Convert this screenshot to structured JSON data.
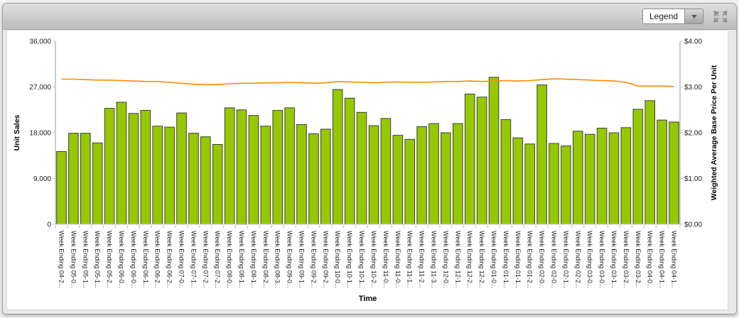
{
  "window": {
    "toolbar": {
      "legend_dropdown": {
        "label": "Legend",
        "icon": "dropdown-arrow-icon"
      },
      "expand_control": {
        "icon": "expand-arrows-icon"
      }
    }
  },
  "chart_data": {
    "type": "bar",
    "subtype": "combo bar + line, dual y-axis",
    "title": "",
    "grid": false,
    "legend_position": "collapsed dropdown (top-right)",
    "x_axis": {
      "label": "Time",
      "categories": [
        "Week Ending 04-2...",
        "Week Ending 05-0...",
        "Week Ending 05-1...",
        "Week Ending 05-1...",
        "Week Ending 05-2...",
        "Week Ending 06-0...",
        "Week Ending 06-0...",
        "Week Ending 06-1...",
        "Week Ending 06-2...",
        "Week Ending 06-2...",
        "Week Ending 07-0...",
        "Week Ending 07-1...",
        "Week Ending 07-2...",
        "Week Ending 07-2...",
        "Week Ending 08-0...",
        "Week Ending 08-1...",
        "Week Ending 08-1...",
        "Week Ending 08-2...",
        "Week Ending 08-3...",
        "Week Ending 09-0...",
        "Week Ending 09-1...",
        "Week Ending 09-2...",
        "Week Ending 09-2...",
        "Week Ending 10-0...",
        "Week Ending 10-1...",
        "Week Ending 10-1...",
        "Week Ending 10-2...",
        "Week Ending 11-0...",
        "Week Ending 11-0...",
        "Week Ending 11-1...",
        "Week Ending 11-2...",
        "Week Ending 11-3...",
        "Week Ending 12-0...",
        "Week Ending 12-1...",
        "Week Ending 12-2...",
        "Week Ending 12-2...",
        "Week Ending 01-0...",
        "Week Ending 01-1...",
        "Week Ending 01-1...",
        "Week Ending 01-2...",
        "Week Ending 02-0...",
        "Week Ending 02-0...",
        "Week Ending 02-1...",
        "Week Ending 02-2...",
        "Week Ending 03-0...",
        "Week Ending 03-0...",
        "Week Ending 03-1...",
        "Week Ending 03-2...",
        "Week Ending 03-2...",
        "Week Ending 04-0...",
        "Week Ending 04-1...",
        "Week Ending 04-1..."
      ]
    },
    "y_axis_left": {
      "label": "Unit Sales",
      "range": [
        0,
        36000
      ],
      "tick_labels": [
        "0",
        "9,000",
        "18,000",
        "27,000",
        "36,000"
      ],
      "tick_values": [
        0,
        9000,
        18000,
        27000,
        36000
      ]
    },
    "y_axis_right": {
      "label": "Weighted Average Base Price Per Unit",
      "range": [
        0,
        4
      ],
      "tick_labels": [
        "$0.00",
        "$1.00",
        "$2.00",
        "$3.00",
        "$4.00"
      ],
      "tick_values": [
        0,
        1,
        2,
        3,
        4
      ]
    },
    "series": [
      {
        "name": "Unit Sales",
        "type": "bar",
        "axis": "left",
        "color": "#95C800",
        "stroke": "#3f3f3f",
        "values": [
          14300,
          17900,
          17900,
          16000,
          22800,
          24000,
          21800,
          22400,
          19300,
          19100,
          21900,
          17900,
          17200,
          15700,
          22900,
          22500,
          21400,
          19300,
          22400,
          22900,
          19600,
          17800,
          18700,
          26500,
          24800,
          22000,
          19400,
          20800,
          17500,
          16700,
          19200,
          19800,
          18000,
          19800,
          25600,
          25000,
          28900,
          20600,
          17000,
          15800,
          27400,
          15900,
          15400,
          18300,
          17700,
          18900,
          18000,
          19000,
          22600,
          24300,
          20500,
          20100
        ]
      },
      {
        "name": "Weighted Average Base Price Per Unit",
        "type": "line",
        "axis": "right",
        "color": "#FF8A00",
        "values": [
          3.17,
          3.17,
          3.16,
          3.15,
          3.15,
          3.14,
          3.13,
          3.12,
          3.12,
          3.1,
          3.08,
          3.06,
          3.05,
          3.05,
          3.07,
          3.08,
          3.08,
          3.09,
          3.09,
          3.1,
          3.09,
          3.08,
          3.09,
          3.12,
          3.11,
          3.1,
          3.09,
          3.1,
          3.11,
          3.1,
          3.1,
          3.11,
          3.12,
          3.12,
          3.13,
          3.12,
          3.13,
          3.14,
          3.13,
          3.14,
          3.16,
          3.18,
          3.17,
          3.16,
          3.15,
          3.14,
          3.13,
          3.1,
          3.02,
          3.02,
          3.02,
          3.01
        ]
      }
    ],
    "style": {
      "axis_line_color": "#9b9b9b",
      "baseline_color": "#cccccc",
      "tick_mark_color": "#aec8e2",
      "text_color": "#1a1a1a"
    }
  }
}
